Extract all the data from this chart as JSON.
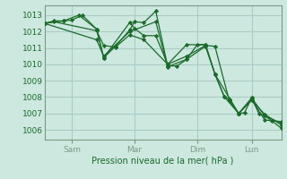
{
  "bg_color": "#cce8df",
  "grid_color": "#aaccC4",
  "line_color": "#1a6b2a",
  "marker_color": "#1a6b2a",
  "spine_color": "#7a9a88",
  "ylabel_ticks": [
    1006,
    1007,
    1008,
    1009,
    1010,
    1011,
    1012,
    1013
  ],
  "xtick_labels": [
    "Sam",
    "Mar",
    "Dim",
    "Lun"
  ],
  "xtick_positions": [
    0.115,
    0.38,
    0.645,
    0.875
  ],
  "xlabel": "Pression niveau de la mer( hPa )",
  "xlim": [
    0.0,
    1.0
  ],
  "ylim": [
    1005.4,
    1013.6
  ],
  "series": [
    [
      0.0,
      1012.5,
      0.04,
      1012.65,
      0.08,
      1012.65,
      0.115,
      1012.7,
      0.16,
      1013.0,
      0.22,
      1012.15,
      0.25,
      1010.4,
      0.3,
      1011.1,
      0.36,
      1012.1,
      0.38,
      1012.6,
      0.42,
      1012.55,
      0.47,
      1013.25,
      0.52,
      1009.9,
      0.56,
      1009.9,
      0.6,
      1010.3,
      0.645,
      1011.2,
      0.68,
      1011.2,
      0.72,
      1009.4,
      0.76,
      1008.0,
      0.78,
      1007.85,
      0.82,
      1007.0,
      0.845,
      1007.05,
      0.875,
      1007.95,
      0.905,
      1007.0,
      0.93,
      1006.85,
      0.96,
      1006.55,
      1.0,
      1006.1
    ],
    [
      0.0,
      1012.5,
      0.08,
      1012.65,
      0.145,
      1013.0,
      0.22,
      1012.15,
      0.25,
      1010.4,
      0.36,
      1012.55,
      0.38,
      1012.2,
      0.42,
      1011.75,
      0.47,
      1011.75,
      0.52,
      1010.0,
      0.6,
      1011.2,
      0.68,
      1011.2,
      0.72,
      1009.4,
      0.76,
      1008.0,
      0.82,
      1007.0,
      0.875,
      1007.95,
      0.93,
      1006.85,
      1.0,
      1006.4
    ],
    [
      0.0,
      1012.5,
      0.04,
      1012.6,
      0.22,
      1012.05,
      0.25,
      1011.15,
      0.3,
      1011.05,
      0.36,
      1011.8,
      0.42,
      1011.5,
      0.52,
      1010.0,
      0.6,
      1010.5,
      0.68,
      1011.15,
      0.72,
      1011.1,
      0.78,
      1007.8,
      0.82,
      1007.0,
      0.875,
      1007.85,
      0.93,
      1006.6,
      1.0,
      1006.5
    ],
    [
      0.0,
      1012.5,
      0.22,
      1011.5,
      0.25,
      1010.5,
      0.36,
      1012.0,
      0.47,
      1012.6,
      0.52,
      1009.85,
      0.6,
      1010.3,
      0.68,
      1011.1,
      0.72,
      1009.4,
      0.82,
      1007.0,
      0.875,
      1007.8,
      0.93,
      1006.95,
      1.0,
      1006.3
    ]
  ]
}
